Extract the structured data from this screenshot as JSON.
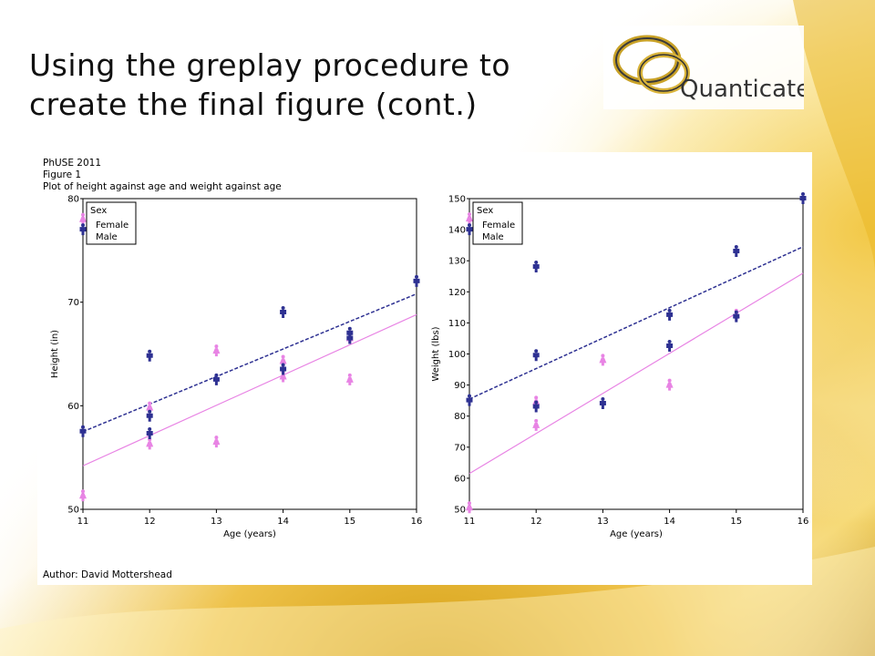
{
  "slide": {
    "title_line1": "Using the greplay procedure to",
    "title_line2": "create the final figure (cont.)",
    "logo_text": "Quanticate"
  },
  "figure": {
    "header_line1": "PhUSE 2011",
    "header_line2": "Figure 1",
    "header_line3": "Plot of height against age and weight against age",
    "author": "Author: David Mottershead"
  },
  "colors": {
    "female": "#e884e4",
    "male": "#2e3192",
    "gold": "#e8b820"
  },
  "chart_data": [
    {
      "type": "scatter",
      "title": "",
      "xlabel": "Age (years)",
      "ylabel": "Height (in)",
      "xlim": [
        11,
        16
      ],
      "ylim": [
        50,
        80
      ],
      "xticks": [
        11,
        12,
        13,
        14,
        15,
        16
      ],
      "yticks": [
        50,
        60,
        70,
        80
      ],
      "legend": {
        "title": "Sex",
        "position": "top-left",
        "entries": [
          "Female",
          "Male"
        ]
      },
      "series": [
        {
          "name": "Female",
          "points": [
            [
              11,
              51.3
            ],
            [
              11,
              78.0
            ],
            [
              12,
              56.3
            ],
            [
              12,
              59.8
            ],
            [
              13,
              56.5
            ],
            [
              13,
              65.3
            ],
            [
              14,
              62.8
            ],
            [
              14,
              64.3
            ],
            [
              15,
              62.5
            ],
            [
              15,
              66.5
            ]
          ],
          "fit": [
            [
              11,
              54.2
            ],
            [
              16,
              68.8
            ]
          ]
        },
        {
          "name": "Male",
          "points": [
            [
              11,
              57.5
            ],
            [
              11,
              77.0
            ],
            [
              12,
              57.3
            ],
            [
              12,
              59.0
            ],
            [
              12,
              64.8
            ],
            [
              13,
              62.5
            ],
            [
              14,
              63.5
            ],
            [
              14,
              69.0
            ],
            [
              15,
              66.5
            ],
            [
              15,
              67.0
            ],
            [
              16,
              72.0
            ]
          ],
          "fit": [
            [
              11,
              57.5
            ],
            [
              16,
              70.8
            ]
          ]
        }
      ]
    },
    {
      "type": "scatter",
      "title": "",
      "xlabel": "Age (years)",
      "ylabel": "Weight (lbs)",
      "xlim": [
        11,
        16
      ],
      "ylim": [
        50,
        150
      ],
      "xticks": [
        11,
        12,
        13,
        14,
        15,
        16
      ],
      "yticks": [
        50,
        60,
        70,
        80,
        90,
        100,
        110,
        120,
        130,
        140,
        150
      ],
      "legend": {
        "title": "Sex",
        "position": "top-left",
        "entries": [
          "Female",
          "Male"
        ]
      },
      "series": [
        {
          "name": "Female",
          "points": [
            [
              11,
              50.5
            ],
            [
              11,
              143.5
            ],
            [
              12,
              77.0
            ],
            [
              12,
              84.5
            ],
            [
              13,
              98.0
            ],
            [
              14,
              90.0
            ],
            [
              15,
              112.5
            ]
          ],
          "fit": [
            [
              11,
              61.5
            ],
            [
              16,
              126.0
            ]
          ]
        },
        {
          "name": "Male",
          "points": [
            [
              11,
              85.0
            ],
            [
              11,
              140.0
            ],
            [
              12,
              83.0
            ],
            [
              12,
              99.5
            ],
            [
              12,
              128.0
            ],
            [
              13,
              84.0
            ],
            [
              14,
              102.5
            ],
            [
              14,
              112.5
            ],
            [
              15,
              112.0
            ],
            [
              15,
              133.0
            ],
            [
              16,
              150.0
            ]
          ],
          "fit": [
            [
              11,
              85.5
            ],
            [
              16,
              134.5
            ]
          ]
        }
      ]
    }
  ]
}
